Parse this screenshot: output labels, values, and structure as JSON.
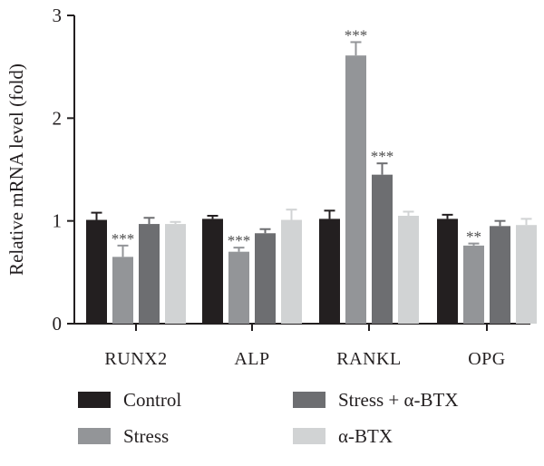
{
  "chart_data": {
    "type": "bar",
    "ylabel": "Relative mRNA level (fold)",
    "xlabel": "",
    "ylim": [
      0,
      3
    ],
    "yticks": [
      "0",
      "1",
      "2",
      "3"
    ],
    "categories": [
      "RUNX2",
      "ALP",
      "RANKL",
      "OPG"
    ],
    "series": [
      {
        "name": "Control",
        "color": "#231f20",
        "values": [
          1.01,
          1.02,
          1.02,
          1.02
        ],
        "errors": [
          0.07,
          0.03,
          0.08,
          0.04
        ],
        "significance": [
          "",
          "",
          "",
          ""
        ]
      },
      {
        "name": "Stress",
        "color": "#939598",
        "values": [
          0.65,
          0.7,
          2.61,
          0.76
        ],
        "errors": [
          0.11,
          0.04,
          0.13,
          0.02
        ],
        "significance": [
          "***",
          "***",
          "***",
          "**"
        ]
      },
      {
        "name": "Stress + α-BTX",
        "color": "#6d6e71",
        "values": [
          0.97,
          0.88,
          1.45,
          0.95
        ],
        "errors": [
          0.06,
          0.04,
          0.11,
          0.05
        ],
        "significance": [
          "",
          "",
          "***",
          ""
        ]
      },
      {
        "name": "α-BTX",
        "color": "#d1d3d4",
        "values": [
          0.97,
          1.01,
          1.05,
          0.96
        ],
        "errors": [
          0.02,
          0.1,
          0.04,
          0.06
        ],
        "significance": [
          "",
          "",
          "",
          ""
        ]
      }
    ],
    "legend_position": "bottom"
  }
}
